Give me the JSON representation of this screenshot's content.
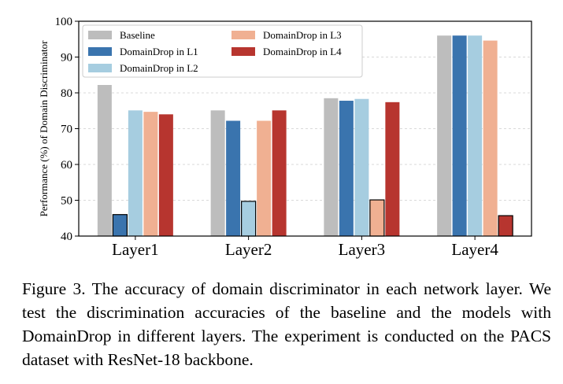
{
  "chart_data": {
    "type": "bar",
    "ylabel": "Performance (%) of Domain Discriminator",
    "xlabel": "",
    "ylim": [
      40,
      100
    ],
    "yticks": [
      40,
      50,
      60,
      70,
      80,
      90,
      100
    ],
    "grid": true,
    "legend_position": "top-left",
    "categories": [
      "Layer1",
      "Layer2",
      "Layer3",
      "Layer4"
    ],
    "series": [
      {
        "name": "Baseline",
        "color": "#bdbdbd",
        "values": [
          82.2,
          75.1,
          78.5,
          96.0
        ]
      },
      {
        "name": "DomainDrop in L1",
        "color": "#3a74ae",
        "values": [
          46.0,
          72.2,
          77.8,
          96.0
        ]
      },
      {
        "name": "DomainDrop in L2",
        "color": "#a6cde0",
        "values": [
          75.1,
          49.7,
          78.3,
          96.0
        ]
      },
      {
        "name": "DomainDrop in L3",
        "color": "#f0b092",
        "values": [
          74.7,
          72.2,
          50.1,
          94.6
        ]
      },
      {
        "name": "DomainDrop in L4",
        "color": "#b7352f",
        "values": [
          74.0,
          75.1,
          77.4,
          45.7
        ]
      }
    ]
  },
  "caption": "Figure 3. The accuracy of domain discriminator in each network layer. We test the discrimination accuracies of the baseline and the models with DomainDrop in different layers. The experiment is conducted on the PACS dataset with ResNet-18 backbone."
}
